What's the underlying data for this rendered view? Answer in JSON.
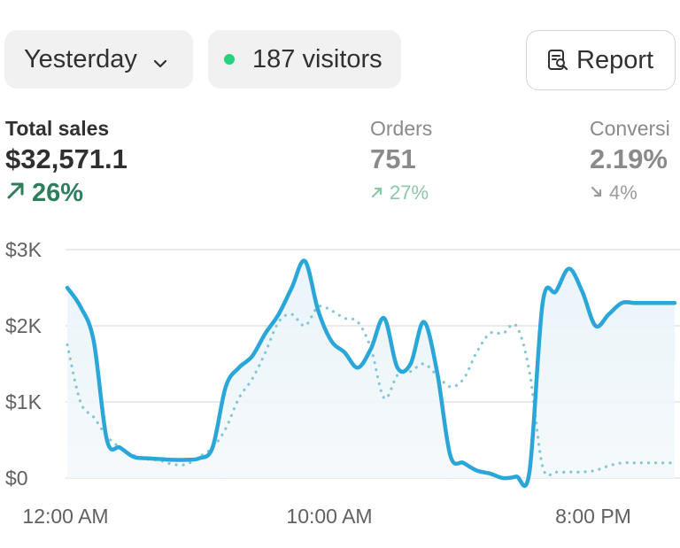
{
  "toolbar": {
    "date_label": "Yesterday",
    "visitors_label": "187 visitors",
    "report_label": "Report"
  },
  "metrics": {
    "sales": {
      "label": "Total sales",
      "value": "$32,571.1",
      "change": "26%",
      "direction": "up"
    },
    "orders": {
      "label": "Orders",
      "value": "751",
      "change": "27%",
      "direction": "up"
    },
    "conversion": {
      "label": "Conversi",
      "value": "2.19%",
      "change": "4%",
      "direction": "down"
    }
  },
  "colors": {
    "series_primary": "#2aa6d9",
    "series_comparison": "#86c6d4",
    "positive": "#2e7d5b",
    "live_dot": "#29d17e"
  },
  "chart_data": {
    "type": "line",
    "y_ticks": [
      "$3K",
      "$2K",
      "$1K",
      "$0"
    ],
    "y_tick_values": [
      3000,
      2000,
      1000,
      0
    ],
    "x_ticks": [
      "12:00 AM",
      "10:00 AM",
      "8:00 PM"
    ],
    "xlim": [
      0,
      23
    ],
    "ylim": [
      0,
      3000
    ],
    "grid": true,
    "series": [
      {
        "style": "solid",
        "x": [
          0,
          0.5,
          1,
          1.5,
          2,
          2.5,
          3,
          3.5,
          4,
          4.5,
          5,
          5.5,
          6,
          6.5,
          7,
          7.5,
          8,
          8.5,
          9,
          9.5,
          10,
          10.5,
          11,
          11.5,
          12,
          12.5,
          13,
          13.5,
          14,
          14.5,
          15,
          15.5,
          16,
          16.5,
          17,
          17.5,
          18,
          18.5,
          19,
          19.5,
          20,
          20.5,
          21,
          21.5,
          22,
          22.5,
          23
        ],
        "values": [
          2500,
          2250,
          1800,
          500,
          400,
          280,
          260,
          250,
          240,
          240,
          260,
          400,
          1200,
          1450,
          1600,
          1900,
          2150,
          2500,
          2850,
          2200,
          1800,
          1650,
          1450,
          1700,
          2100,
          1450,
          1500,
          2050,
          1400,
          300,
          200,
          100,
          60,
          0,
          20,
          80,
          2300,
          2450,
          2750,
          2450,
          2000,
          2150,
          2300,
          2300,
          2300,
          2300,
          2300
        ]
      },
      {
        "style": "dotted",
        "x": [
          0,
          0.5,
          1,
          1.5,
          2,
          2.5,
          3,
          3.5,
          4,
          4.5,
          5,
          5.5,
          6,
          6.5,
          7,
          7.5,
          8,
          8.5,
          9,
          9.5,
          10,
          10.5,
          11,
          11.5,
          12,
          12.5,
          13,
          13.5,
          14,
          14.5,
          15,
          15.5,
          16,
          16.5,
          17,
          17.5,
          18,
          18.5,
          19,
          19.5,
          20,
          20.5,
          21,
          21.5,
          22,
          22.5,
          23
        ],
        "values": [
          1750,
          1000,
          800,
          550,
          400,
          300,
          250,
          230,
          180,
          180,
          280,
          400,
          650,
          1050,
          1300,
          1650,
          2050,
          2150,
          2000,
          2250,
          2200,
          2100,
          2050,
          1700,
          1050,
          1350,
          1400,
          1500,
          1350,
          1200,
          1300,
          1650,
          1900,
          1900,
          2000,
          1400,
          150,
          80,
          80,
          80,
          100,
          160,
          200,
          200,
          200,
          200,
          200
        ]
      }
    ]
  }
}
